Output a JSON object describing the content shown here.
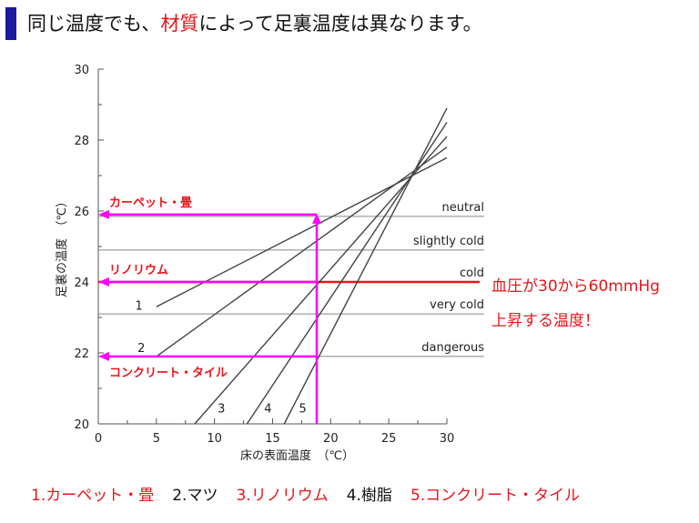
{
  "header": {
    "title_part1": "同じ温度でも、",
    "title_highlight": "材質",
    "title_part2": "によって足裏温度は異なります。",
    "accent_color": "#1a1a9e",
    "highlight_color": "#e8141a"
  },
  "side_note": {
    "line1": "血圧が30から60mmHg",
    "line2": "上昇する温度！",
    "color": "#e8141a"
  },
  "legend_items": [
    {
      "label": "1.カーペット・畳",
      "color": "#e8141a"
    },
    {
      "label": "2.マツ",
      "color": "#111111"
    },
    {
      "label": "3.リノリウム",
      "color": "#e8141a"
    },
    {
      "label": "4.樹脂",
      "color": "#111111"
    },
    {
      "label": "5.コンクリート・タイル",
      "color": "#e8141a"
    }
  ],
  "chart_data": {
    "type": "line",
    "xlabel": "床の表面温度　（℃）",
    "ylabel": "足裏の温度　（℃）",
    "xlim": [
      0,
      30
    ],
    "ylim": [
      20,
      30
    ],
    "xticks": [
      0,
      5,
      10,
      15,
      20,
      25,
      30
    ],
    "yticks": [
      20,
      22,
      24,
      26,
      28,
      30
    ],
    "series": [
      {
        "name": "1",
        "points": [
          [
            5,
            23.3
          ],
          [
            30,
            27.5
          ]
        ]
      },
      {
        "name": "2",
        "points": [
          [
            5,
            21.9
          ],
          [
            30,
            27.8
          ]
        ]
      },
      {
        "name": "3",
        "points": [
          [
            8.3,
            20
          ],
          [
            30,
            28.1
          ]
        ]
      },
      {
        "name": "4",
        "points": [
          [
            12.8,
            20
          ],
          [
            30,
            28.5
          ]
        ]
      },
      {
        "name": "5",
        "points": [
          [
            16,
            20
          ],
          [
            30,
            28.9
          ]
        ]
      }
    ],
    "thresholds": [
      {
        "label": "neutral",
        "y": 25.85
      },
      {
        "label": "slightly cold",
        "y": 24.9
      },
      {
        "label": "cold",
        "y": 24.0
      },
      {
        "label": "very cold",
        "y": 23.1
      },
      {
        "label": "dangerous",
        "y": 21.9
      }
    ],
    "threshold_color": "#888888",
    "cold_line_color": "#e8141a",
    "marker_color": "#ff00ff",
    "marker_x": 18.8,
    "marker_top_y": 25.9,
    "annotations": [
      {
        "label": "カーペット・畳",
        "y": 25.9,
        "position": "above"
      },
      {
        "label": "リノリウム",
        "y": 24.0,
        "position": "above"
      },
      {
        "label": "コンクリート・タイル",
        "y": 21.9,
        "position": "below"
      }
    ]
  }
}
